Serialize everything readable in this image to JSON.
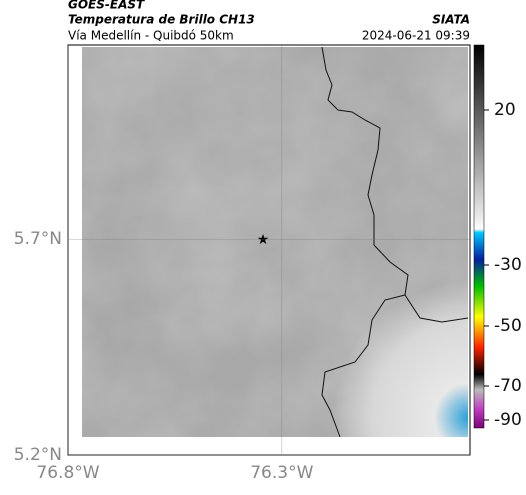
{
  "header": {
    "satellite": "GOES-EAST",
    "product": "Temperatura de Brillo CH13",
    "route": "Vía Medellín - Quibdó 50km",
    "source": "SIATA",
    "datetime": "2024-06-21 09:39"
  },
  "map": {
    "xlim": [
      -76.8,
      -75.86
    ],
    "ylim": [
      5.2,
      6.15
    ],
    "xticks": [
      {
        "value": -76.8,
        "label": "76.8°W"
      },
      {
        "value": -76.3,
        "label": "76.3°W"
      }
    ],
    "yticks": [
      {
        "value": 5.2,
        "label": "5.2°N"
      },
      {
        "value": 5.7,
        "label": "5.7°N"
      }
    ]
  },
  "colorbar": {
    "ticks": [
      20,
      -30,
      -50,
      -70,
      -90
    ]
  }
}
